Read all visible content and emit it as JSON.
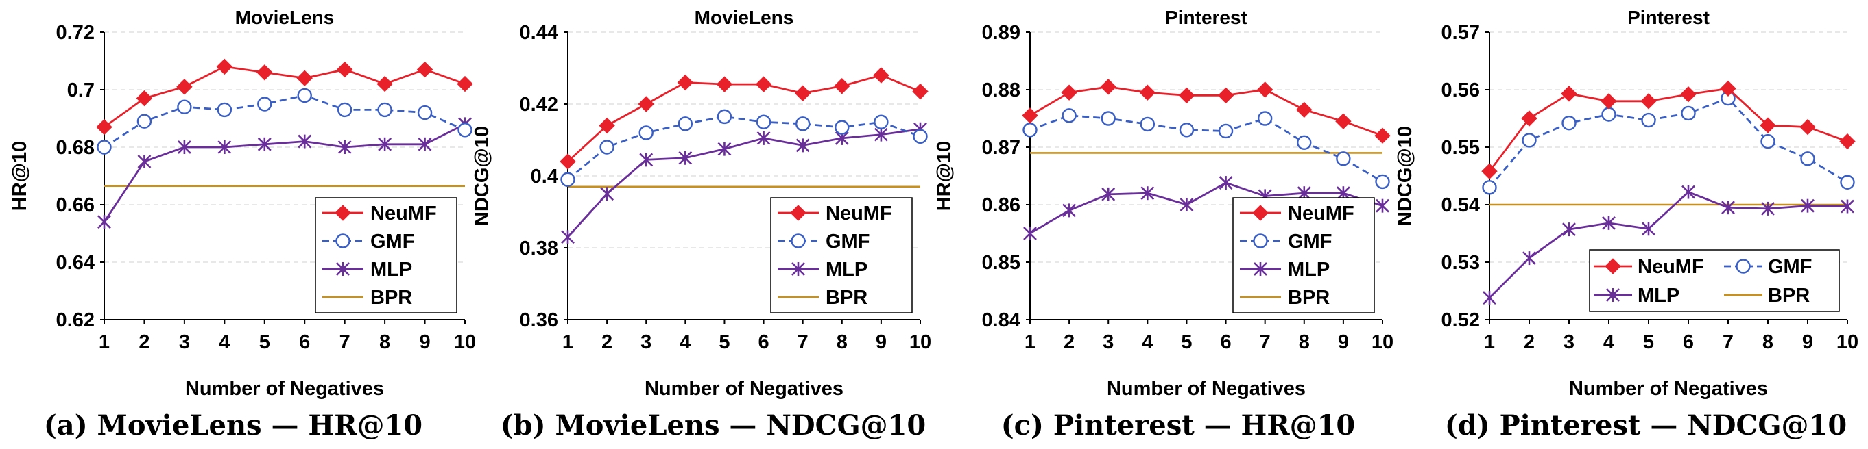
{
  "figure": {
    "captions": [
      "(a) MovieLens — HR@10",
      "(b) MovieLens — NDCG@10",
      "(c) Pinterest — HR@10",
      "(d) Pinterest — NDCG@10"
    ]
  },
  "colors": {
    "NeuMF": "#e8202a",
    "GMF": "#3a5fc4",
    "MLP": "#6a2e9a",
    "BPR": "#c8901c"
  },
  "chart_data": [
    {
      "type": "line",
      "title": "MovieLens",
      "xlabel": "Number of Negatives",
      "ylabel": "HR@10",
      "x": [
        1,
        2,
        3,
        4,
        5,
        6,
        7,
        8,
        9,
        10
      ],
      "ylim": [
        0.62,
        0.72
      ],
      "yticks": [
        "0.62",
        "0.64",
        "0.66",
        "0.68",
        "0.7",
        "0.72"
      ],
      "grid": true,
      "legend_position": "bottom-right",
      "legend_columns": 1,
      "series": [
        {
          "name": "NeuMF",
          "marker": "diamond",
          "style": "solid",
          "values": [
            0.687,
            0.697,
            0.701,
            0.708,
            0.706,
            0.704,
            0.707,
            0.702,
            0.707,
            0.702
          ]
        },
        {
          "name": "GMF",
          "marker": "open-circle",
          "style": "dashed",
          "values": [
            0.68,
            0.689,
            0.694,
            0.693,
            0.695,
            0.698,
            0.693,
            0.693,
            0.692,
            0.686
          ]
        },
        {
          "name": "MLP",
          "marker": "star",
          "style": "solid",
          "values": [
            0.654,
            0.675,
            0.68,
            0.68,
            0.681,
            0.682,
            0.68,
            0.681,
            0.681,
            0.688
          ]
        },
        {
          "name": "BPR",
          "marker": "none",
          "style": "solid",
          "values": [
            0.6665,
            0.6665,
            0.6665,
            0.6665,
            0.6665,
            0.6665,
            0.6665,
            0.6665,
            0.6665,
            0.6665
          ]
        }
      ]
    },
    {
      "type": "line",
      "title": "MovieLens",
      "xlabel": "Number of Negatives",
      "ylabel": "NDCG@10",
      "x": [
        1,
        2,
        3,
        4,
        5,
        6,
        7,
        8,
        9,
        10
      ],
      "ylim": [
        0.36,
        0.44
      ],
      "yticks": [
        "0.36",
        "0.38",
        "0.4",
        "0.42",
        "0.44"
      ],
      "grid": true,
      "legend_position": "bottom-right",
      "legend_columns": 1,
      "series": [
        {
          "name": "NeuMF",
          "marker": "diamond",
          "style": "solid",
          "values": [
            0.404,
            0.414,
            0.42,
            0.426,
            0.4255,
            0.4255,
            0.423,
            0.425,
            0.428,
            0.4235
          ]
        },
        {
          "name": "GMF",
          "marker": "open-circle",
          "style": "dashed",
          "values": [
            0.399,
            0.408,
            0.412,
            0.4145,
            0.4165,
            0.415,
            0.4145,
            0.4135,
            0.415,
            0.411
          ]
        },
        {
          "name": "MLP",
          "marker": "star",
          "style": "solid",
          "values": [
            0.383,
            0.395,
            0.4045,
            0.405,
            0.4075,
            0.4105,
            0.4085,
            0.4105,
            0.4115,
            0.413
          ]
        },
        {
          "name": "BPR",
          "marker": "none",
          "style": "solid",
          "values": [
            0.397,
            0.397,
            0.397,
            0.397,
            0.397,
            0.397,
            0.397,
            0.397,
            0.397,
            0.397
          ]
        }
      ]
    },
    {
      "type": "line",
      "title": "Pinterest",
      "xlabel": "Number of Negatives",
      "ylabel": "HR@10",
      "x": [
        1,
        2,
        3,
        4,
        5,
        6,
        7,
        8,
        9,
        10
      ],
      "ylim": [
        0.84,
        0.89
      ],
      "yticks": [
        "0.84",
        "0.85",
        "0.86",
        "0.87",
        "0.88",
        "0.89"
      ],
      "grid": true,
      "legend_position": "bottom-right",
      "legend_columns": 1,
      "series": [
        {
          "name": "NeuMF",
          "marker": "diamond",
          "style": "solid",
          "values": [
            0.8755,
            0.8795,
            0.8805,
            0.8795,
            0.879,
            0.879,
            0.88,
            0.8765,
            0.8745,
            0.872
          ]
        },
        {
          "name": "GMF",
          "marker": "open-circle",
          "style": "dashed",
          "values": [
            0.873,
            0.8755,
            0.875,
            0.874,
            0.873,
            0.8728,
            0.875,
            0.8708,
            0.868,
            0.864
          ]
        },
        {
          "name": "MLP",
          "marker": "star",
          "style": "solid",
          "values": [
            0.855,
            0.859,
            0.8618,
            0.862,
            0.86,
            0.8638,
            0.8615,
            0.862,
            0.862,
            0.8598
          ]
        },
        {
          "name": "BPR",
          "marker": "none",
          "style": "solid",
          "values": [
            0.869,
            0.869,
            0.869,
            0.869,
            0.869,
            0.869,
            0.869,
            0.869,
            0.869,
            0.869
          ]
        }
      ]
    },
    {
      "type": "line",
      "title": "Pinterest",
      "xlabel": "Number of Negatives",
      "ylabel": "NDCG@10",
      "x": [
        1,
        2,
        3,
        4,
        5,
        6,
        7,
        8,
        9,
        10
      ],
      "ylim": [
        0.52,
        0.57
      ],
      "yticks": [
        "0.52",
        "0.53",
        "0.54",
        "0.55",
        "0.56",
        "0.57"
      ],
      "grid": true,
      "legend_position": "bottom-right",
      "legend_columns": 2,
      "series": [
        {
          "name": "NeuMF",
          "marker": "diamond",
          "style": "solid",
          "values": [
            0.5458,
            0.555,
            0.5593,
            0.558,
            0.558,
            0.5592,
            0.5602,
            0.5538,
            0.5535,
            0.551
          ]
        },
        {
          "name": "GMF",
          "marker": "open-circle",
          "style": "dashed",
          "values": [
            0.543,
            0.5512,
            0.5542,
            0.5557,
            0.5547,
            0.5559,
            0.5585,
            0.551,
            0.548,
            0.5439
          ]
        },
        {
          "name": "MLP",
          "marker": "star",
          "style": "solid",
          "values": [
            0.5238,
            0.5307,
            0.5357,
            0.5368,
            0.5358,
            0.5422,
            0.5395,
            0.5393,
            0.5398,
            0.5397
          ]
        },
        {
          "name": "BPR",
          "marker": "none",
          "style": "solid",
          "values": [
            0.54,
            0.54,
            0.54,
            0.54,
            0.54,
            0.54,
            0.54,
            0.54,
            0.54,
            0.54
          ]
        }
      ]
    }
  ]
}
